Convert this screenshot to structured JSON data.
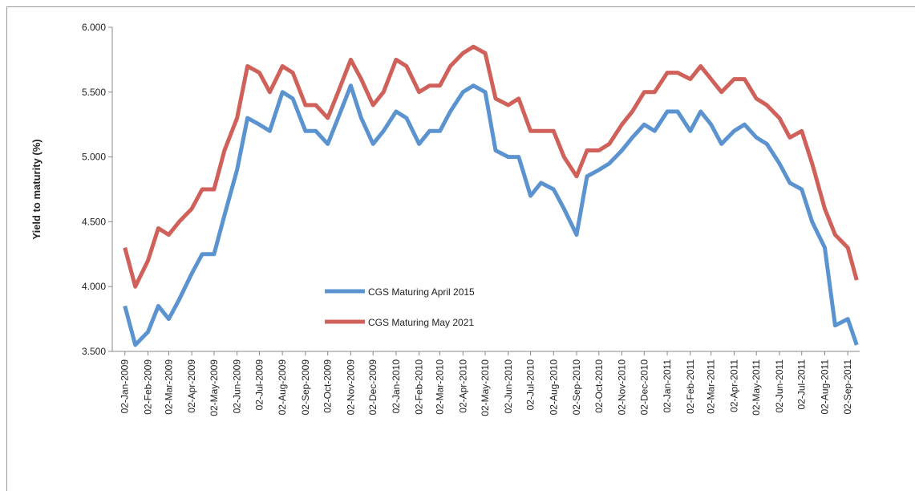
{
  "chart_data": {
    "type": "line",
    "ylabel": "Yield to maturity (%)",
    "ylim": [
      3.5,
      6
    ],
    "yticks": [
      {
        "value": 3.5,
        "label": "3.500"
      },
      {
        "value": 4,
        "label": "4.000"
      },
      {
        "value": 4.5,
        "label": "4.500"
      },
      {
        "value": 5,
        "label": "5.000"
      },
      {
        "value": 5.5,
        "label": "5.500"
      },
      {
        "value": 6,
        "label": "6.000"
      }
    ],
    "xlim": [
      "2008-12-16",
      "2011-09-18"
    ],
    "xticks": [
      {
        "value": "2009-01-02",
        "label": "02-Jan-2009"
      },
      {
        "value": "2009-02-02",
        "label": "02-Feb-2009"
      },
      {
        "value": "2009-03-02",
        "label": "02-Mar-2009"
      },
      {
        "value": "2009-04-02",
        "label": "02-Apr-2009"
      },
      {
        "value": "2009-05-02",
        "label": "02-May-2009"
      },
      {
        "value": "2009-06-02",
        "label": "02-Jun-2009"
      },
      {
        "value": "2009-07-02",
        "label": "02-Jul-2009"
      },
      {
        "value": "2009-08-02",
        "label": "02-Aug-2009"
      },
      {
        "value": "2009-09-02",
        "label": "02-Sep-2009"
      },
      {
        "value": "2009-10-02",
        "label": "02-Oct-2009"
      },
      {
        "value": "2009-11-02",
        "label": "02-Nov-2009"
      },
      {
        "value": "2009-12-02",
        "label": "02-Dec-2009"
      },
      {
        "value": "2010-01-02",
        "label": "02-Jan-2010"
      },
      {
        "value": "2010-02-02",
        "label": "02-Feb-2010"
      },
      {
        "value": "2010-03-02",
        "label": "02-Mar-2010"
      },
      {
        "value": "2010-04-02",
        "label": "02-Apr-2010"
      },
      {
        "value": "2010-05-02",
        "label": "02-May-2010"
      },
      {
        "value": "2010-06-02",
        "label": "02-Jun-2010"
      },
      {
        "value": "2010-07-02",
        "label": "02-Jul-2010"
      },
      {
        "value": "2010-08-02",
        "label": "02-Aug-2010"
      },
      {
        "value": "2010-09-02",
        "label": "02-Sep-2010"
      },
      {
        "value": "2010-10-02",
        "label": "02-Oct-2010"
      },
      {
        "value": "2010-11-02",
        "label": "02-Nov-2010"
      },
      {
        "value": "2010-12-02",
        "label": "02-Dec-2010"
      },
      {
        "value": "2011-01-02",
        "label": "02-Jan-2011"
      },
      {
        "value": "2011-02-02",
        "label": "02-Feb-2011"
      },
      {
        "value": "2011-03-02",
        "label": "02-Mar-2011"
      },
      {
        "value": "2011-04-02",
        "label": "02-Apr-2011"
      },
      {
        "value": "2011-05-02",
        "label": "02-May-2011"
      },
      {
        "value": "2011-06-02",
        "label": "02-Jun-2011"
      },
      {
        "value": "2011-07-02",
        "label": "02-Jul-2011"
      },
      {
        "value": "2011-08-02",
        "label": "02-Aug-2011"
      },
      {
        "value": "2011-09-02",
        "label": "02-Sep-2011"
      }
    ],
    "x": [
      "2009-01-02",
      "2009-01-16",
      "2009-02-02",
      "2009-02-16",
      "2009-03-02",
      "2009-03-16",
      "2009-04-02",
      "2009-04-16",
      "2009-05-02",
      "2009-05-16",
      "2009-06-02",
      "2009-06-16",
      "2009-07-02",
      "2009-07-16",
      "2009-08-02",
      "2009-08-16",
      "2009-09-02",
      "2009-09-16",
      "2009-10-02",
      "2009-10-16",
      "2009-11-02",
      "2009-11-16",
      "2009-12-02",
      "2009-12-16",
      "2010-01-02",
      "2010-01-16",
      "2010-02-02",
      "2010-02-16",
      "2010-03-02",
      "2010-03-16",
      "2010-04-02",
      "2010-04-16",
      "2010-05-02",
      "2010-05-16",
      "2010-06-02",
      "2010-06-16",
      "2010-07-02",
      "2010-07-16",
      "2010-08-02",
      "2010-08-16",
      "2010-09-02",
      "2010-09-16",
      "2010-10-02",
      "2010-10-16",
      "2010-11-02",
      "2010-11-16",
      "2010-12-02",
      "2010-12-16",
      "2011-01-02",
      "2011-01-16",
      "2011-02-02",
      "2011-02-16",
      "2011-03-02",
      "2011-03-16",
      "2011-04-02",
      "2011-04-16",
      "2011-05-02",
      "2011-05-16",
      "2011-06-02",
      "2011-06-16",
      "2011-07-02",
      "2011-07-16",
      "2011-08-02",
      "2011-08-16",
      "2011-09-02",
      "2011-09-14"
    ],
    "series": [
      {
        "name": "CGS Maturing April 2015",
        "color": "#5b93d0",
        "values": [
          3.85,
          3.55,
          3.65,
          3.85,
          3.75,
          3.9,
          4.1,
          4.25,
          4.25,
          4.55,
          4.9,
          5.3,
          5.25,
          5.2,
          5.5,
          5.45,
          5.2,
          5.2,
          5.1,
          5.3,
          5.55,
          5.3,
          5.1,
          5.2,
          5.35,
          5.3,
          5.1,
          5.2,
          5.2,
          5.35,
          5.5,
          5.55,
          5.5,
          5.05,
          5.0,
          5.0,
          4.7,
          4.8,
          4.75,
          4.6,
          4.4,
          4.85,
          4.9,
          4.95,
          5.05,
          5.15,
          5.25,
          5.2,
          5.35,
          5.35,
          5.2,
          5.35,
          5.25,
          5.1,
          5.2,
          5.25,
          5.15,
          5.1,
          4.95,
          4.8,
          4.75,
          4.5,
          4.3,
          3.7,
          3.75,
          3.55
        ]
      },
      {
        "name": "CGS Maturing May 2021",
        "color": "#d0605a",
        "values": [
          4.3,
          4.0,
          4.2,
          4.45,
          4.4,
          4.5,
          4.6,
          4.75,
          4.75,
          5.05,
          5.3,
          5.7,
          5.65,
          5.5,
          5.7,
          5.65,
          5.4,
          5.4,
          5.3,
          5.5,
          5.75,
          5.6,
          5.4,
          5.5,
          5.75,
          5.7,
          5.5,
          5.55,
          5.55,
          5.7,
          5.8,
          5.85,
          5.8,
          5.45,
          5.4,
          5.45,
          5.2,
          5.2,
          5.2,
          5.0,
          4.85,
          5.05,
          5.05,
          5.1,
          5.25,
          5.35,
          5.5,
          5.5,
          5.65,
          5.65,
          5.6,
          5.7,
          5.6,
          5.5,
          5.6,
          5.6,
          5.45,
          5.4,
          5.3,
          5.15,
          5.2,
          4.95,
          4.6,
          4.4,
          4.3,
          4.05
        ]
      }
    ]
  }
}
